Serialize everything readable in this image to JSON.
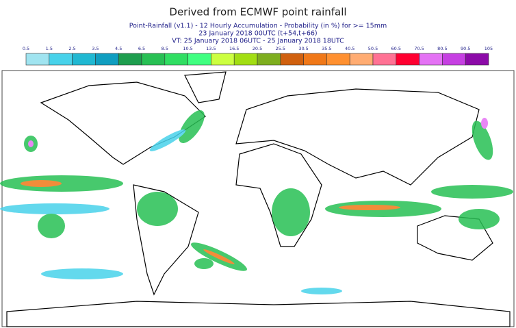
{
  "title": "Derived from ECMWF point rainfall",
  "subtitle_lines": [
    "Point-Rainfall (v1.1) - 12 Hourly Accumulation - Probability (in %) for >= 15mm",
    "23 January 2018 00UTC (t+54,t+66)",
    "VT: 25 January 2018 06UTC - 25 January 2018 18UTC"
  ],
  "colorbar": {
    "labels": [
      0.5,
      1.5,
      2.5,
      3.5,
      4.5,
      6.5,
      8.5,
      10.5,
      13.5,
      16.5,
      20.5,
      25.5,
      30.5,
      35.5,
      40.5,
      50.5,
      60.5,
      70.5,
      80.5,
      90.5,
      105
    ],
    "colors": [
      "#a0e4f0",
      "#48d2ea",
      "#20b8d2",
      "#109ec0",
      "#1e9e4e",
      "#28c054",
      "#30de62",
      "#40ff80",
      "#ccff40",
      "#a2de12",
      "#7eae1e",
      "#d0600e",
      "#f07818",
      "#ff9030",
      "#ffac72",
      "#ff7294",
      "#ff0030",
      "#e472f4",
      "#c640e2",
      "#8c0aa8"
    ]
  }
}
